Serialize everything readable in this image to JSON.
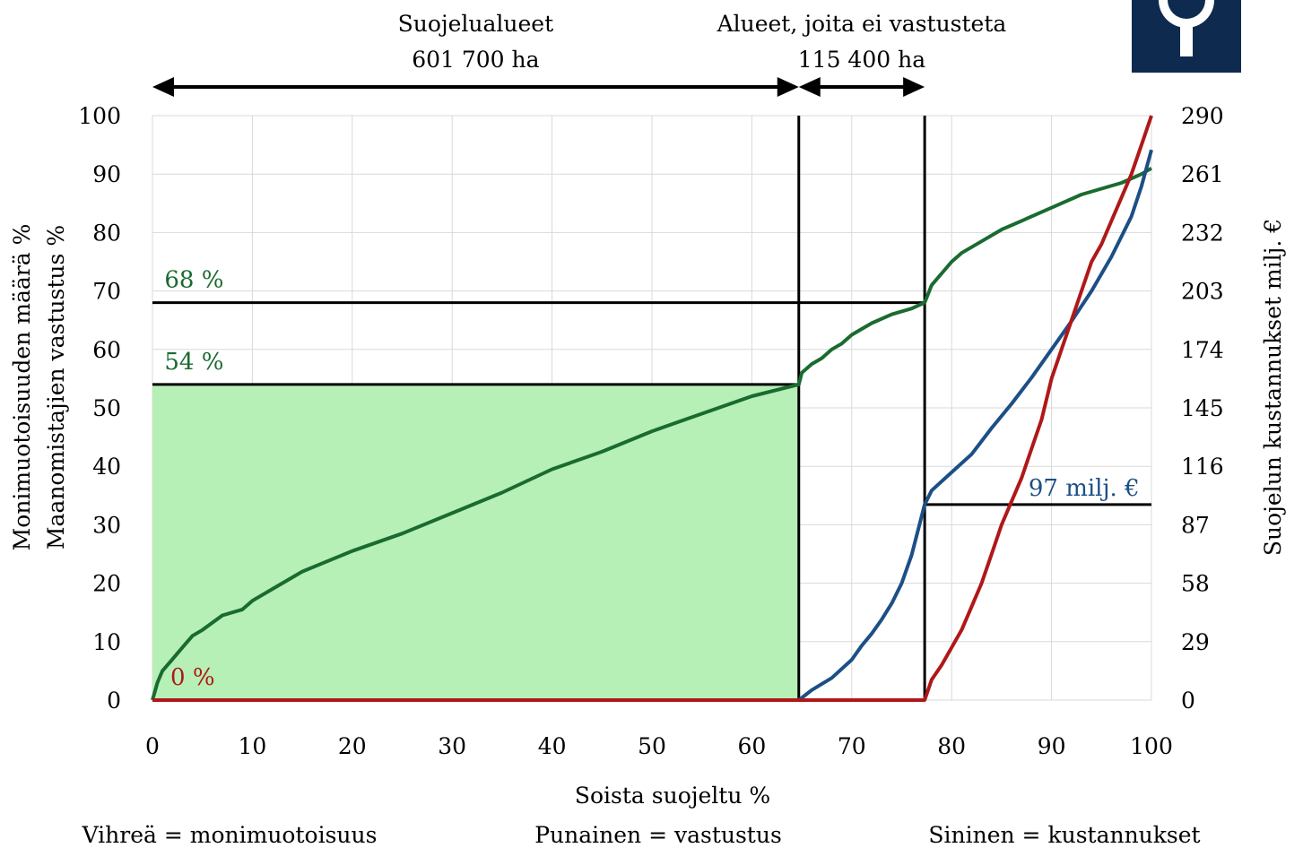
{
  "chart_data": {
    "type": "line",
    "xlabel": "Soista suojeltu %",
    "ylabel_left": [
      "Monimuotoisuuden määrä %",
      "Maanomistajien vastustus %"
    ],
    "ylabel_right": "Suojelun kustannukset milj. €",
    "xlim": [
      0,
      100
    ],
    "ylim_left": [
      0,
      100
    ],
    "ylim_right": [
      0,
      290
    ],
    "x_ticks": [
      "0",
      "10",
      "20",
      "30",
      "40",
      "50",
      "60",
      "70",
      "80",
      "90",
      "100"
    ],
    "y_ticks_left": [
      "0",
      "10",
      "20",
      "30",
      "40",
      "50",
      "60",
      "70",
      "80",
      "90",
      "100"
    ],
    "y_ticks_right": [
      "0",
      "29",
      "58",
      "87",
      "116",
      "145",
      "174",
      "203",
      "232",
      "261",
      "290"
    ],
    "grid": true,
    "series": [
      {
        "key": "biodiversity",
        "color": "#1a6b30",
        "x": [
          0,
          0.5,
          1,
          2,
          3,
          4,
          5,
          7,
          9,
          10,
          12,
          15,
          20,
          25,
          30,
          35,
          40,
          45,
          50,
          55,
          60,
          64.7,
          65,
          66,
          67,
          68,
          69,
          70,
          71,
          72,
          74,
          76,
          77.3,
          78,
          79,
          80,
          81,
          83,
          85,
          87,
          89,
          91,
          93,
          95,
          97,
          99,
          100
        ],
        "y": [
          0,
          3,
          5,
          7,
          9,
          11,
          12,
          14.5,
          15.5,
          17,
          19,
          22,
          25.5,
          28.5,
          32,
          35.5,
          39.5,
          42.5,
          46,
          49,
          52,
          54,
          56,
          57.5,
          58.5,
          60,
          61,
          62.5,
          63.5,
          64.5,
          66,
          67,
          68,
          71,
          73,
          75,
          76.5,
          78.5,
          80.5,
          82,
          83.5,
          85,
          86.5,
          87.5,
          88.5,
          90,
          91
        ]
      },
      {
        "key": "opposition",
        "color": "#b01818",
        "x": [
          0,
          77.3,
          78,
          79,
          80,
          81,
          82,
          83,
          84,
          85,
          86,
          87,
          88,
          89,
          90,
          91,
          92,
          93,
          94,
          95,
          96,
          97,
          98,
          99,
          100
        ],
        "y": [
          0,
          0,
          3.5,
          6,
          9,
          12,
          16,
          20,
          25,
          30,
          34,
          38,
          43,
          48,
          55,
          60,
          65,
          70,
          75,
          78,
          82,
          86,
          90,
          95,
          100
        ]
      },
      {
        "key": "cost",
        "color": "#1c4f86",
        "x": [
          0,
          64.7,
          66,
          68,
          70,
          71,
          72,
          73,
          74,
          75,
          76,
          77.3,
          78,
          80,
          82,
          84,
          86,
          88,
          90,
          92,
          94,
          96,
          98,
          99,
          100
        ],
        "y_right": [
          0,
          0,
          5,
          11,
          20,
          27,
          33,
          40,
          48,
          58,
          72,
          97,
          104,
          113,
          122,
          135,
          147,
          160,
          174,
          188,
          203,
          220,
          240,
          255,
          273
        ]
      }
    ],
    "shaded_region": {
      "x": [
        0,
        64.7
      ],
      "y": [
        0,
        54
      ],
      "color": "#b6f0b6"
    },
    "reference_lines": [
      {
        "orientation": "horizontal",
        "y": 68,
        "x": [
          0,
          77.3
        ]
      },
      {
        "orientation": "horizontal",
        "y": 54,
        "x": [
          0,
          64.7
        ]
      },
      {
        "orientation": "vertical",
        "x": 64.7,
        "y": [
          0,
          100
        ]
      },
      {
        "orientation": "vertical",
        "x": 77.3,
        "y": [
          0,
          100
        ]
      },
      {
        "orientation": "horizontal",
        "y_right": 97,
        "x": [
          77.3,
          100
        ]
      }
    ],
    "annotations": [
      {
        "text": "68 %",
        "color": "#1a6b30",
        "x": 1.2,
        "y": 70.6
      },
      {
        "text": "54 %",
        "color": "#1a6b30",
        "x": 1.2,
        "y": 56.6
      },
      {
        "text": "0 %",
        "color": "#b01818",
        "x": 1.8,
        "y": 2.6
      },
      {
        "text": "97 milj. €",
        "color": "#1c4f86",
        "x": 98.8,
        "y_right": 101.5,
        "anchor": "end"
      }
    ],
    "ranges": [
      {
        "lines": [
          "Suojelualueet",
          "601 700 ha"
        ],
        "x": [
          0,
          64.7
        ]
      },
      {
        "lines": [
          "Alueet, joita ei vastusteta",
          "115 400 ha"
        ],
        "x": [
          64.7,
          77.3
        ]
      }
    ],
    "legend": [
      {
        "text": "Vihreä = monimuotoisuus",
        "color": "#2eab3e"
      },
      {
        "text": "Punainen = vastustus",
        "color": "#e0312e"
      },
      {
        "text": "Sininen = kustannukset",
        "color": "#1c5fa8"
      }
    ]
  },
  "logo": {
    "name": "info-icon",
    "bg": "#0e2a4f"
  }
}
